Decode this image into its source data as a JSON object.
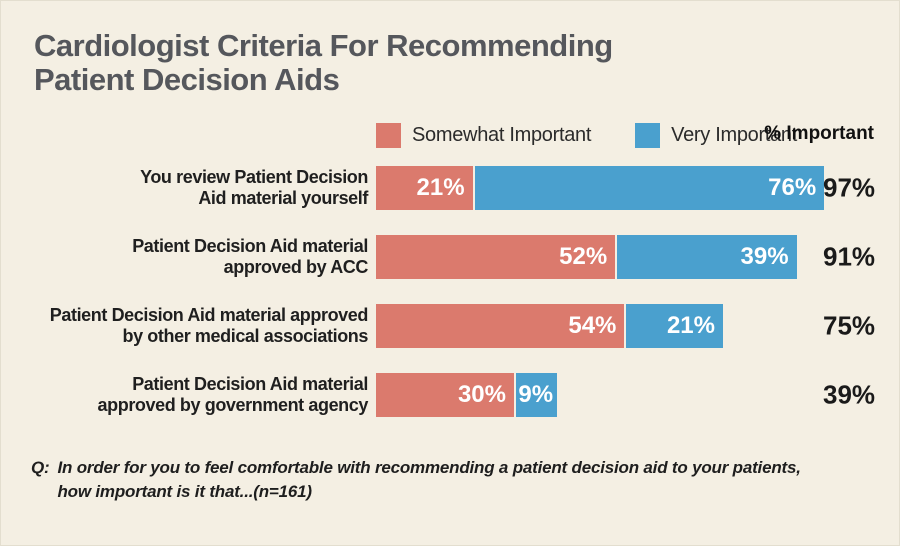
{
  "title": {
    "line1": "Cardiologist Criteria For Recommending",
    "line2": "Patient Decision Aids"
  },
  "legend": {
    "items": [
      {
        "label": "Somewhat Important",
        "color": "#db7a6d"
      },
      {
        "label": "Very Important",
        "color": "#4aa0ce"
      }
    ],
    "right_label": "% Important"
  },
  "chart_data": {
    "type": "bar",
    "orientation": "horizontal",
    "stacked": true,
    "title": "Cardiologist Criteria For Recommending Patient Decision Aids",
    "categories": [
      "You review Patient Decision\nAid material yourself",
      "Patient Decision Aid material\napproved by ACC",
      "Patient Decision Aid material approved\nby other medical associations",
      "Patient Decision Aid material\napproved by government agency"
    ],
    "series": [
      {
        "name": "Somewhat Important",
        "color": "#db7a6d",
        "values": [
          21,
          52,
          54,
          30
        ]
      },
      {
        "name": "Very Important",
        "color": "#4aa0ce",
        "values": [
          76,
          39,
          21,
          9
        ]
      }
    ],
    "totals": [
      97,
      91,
      75,
      39
    ],
    "value_suffix": "%",
    "xlim": [
      0,
      100
    ],
    "legend_position": "top",
    "grid": false
  },
  "footnote": {
    "prefix": "Q:",
    "text": "In order for you to feel comfortable with recommending a patient decision aid to your patients,\nhow important is it that...(n=161)"
  },
  "colors": {
    "background": "#f4efe3",
    "title_text": "#55575c",
    "somewhat_important": "#db7a6d",
    "very_important": "#4aa0ce",
    "label_text": "#1f1f1f",
    "bar_value_text": "#ffffff",
    "total_text": "#1a1a1a"
  }
}
